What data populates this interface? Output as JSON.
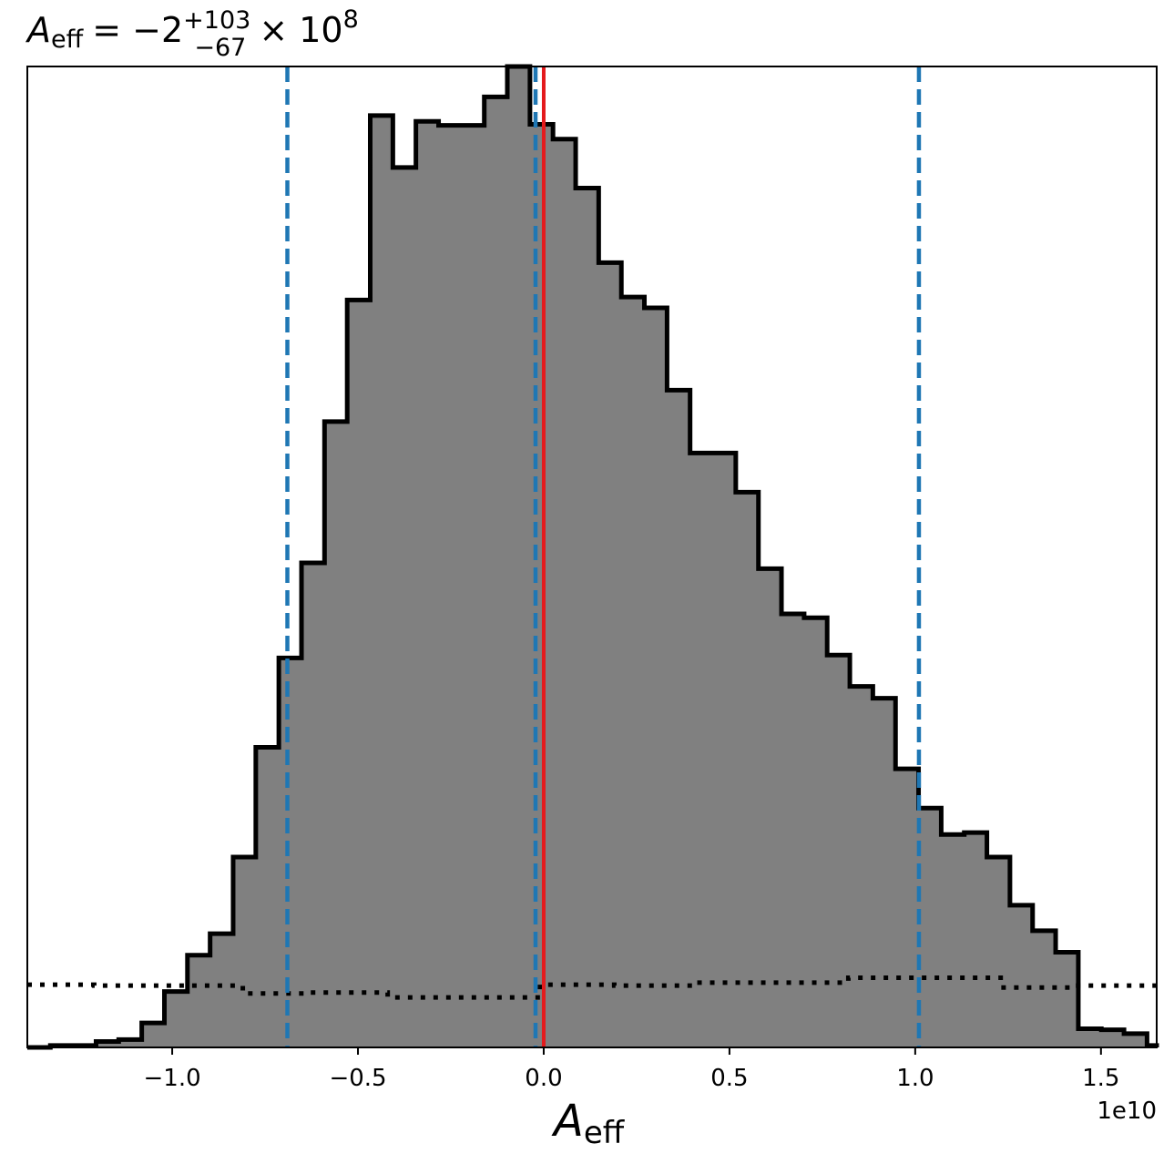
{
  "chart_data": {
    "type": "histogram",
    "title": {
      "symbol": "A",
      "subscript": "eff",
      "relation": "= −2",
      "upper": "+103",
      "lower": "−67",
      "multiplier": "× 10",
      "exponent": "8"
    },
    "xlabel": {
      "symbol": "A",
      "subscript": "eff"
    },
    "offset_label": "1e10",
    "x_unit_scale": 10000000000.0,
    "xlim": [
      -1.39,
      1.65
    ],
    "ylim": [
      0,
      1.0
    ],
    "xticks": [
      -1.0,
      -0.5,
      0.0,
      0.5,
      1.0,
      1.5
    ],
    "xtick_labels": [
      "−1.0",
      "−0.5",
      "0.0",
      "0.5",
      "1.0",
      "1.5"
    ],
    "yticks_shown": false,
    "grid": false,
    "histogram": {
      "bin_edges": [
        -1.39,
        -1.328,
        -1.267,
        -1.205,
        -1.144,
        -1.082,
        -1.021,
        -0.959,
        -0.898,
        -0.836,
        -0.775,
        -0.713,
        -0.652,
        -0.59,
        -0.529,
        -0.467,
        -0.406,
        -0.344,
        -0.283,
        -0.221,
        -0.16,
        -0.098,
        -0.037,
        0.025,
        0.086,
        0.148,
        0.209,
        0.271,
        0.332,
        0.394,
        0.455,
        0.517,
        0.578,
        0.64,
        0.701,
        0.763,
        0.824,
        0.886,
        0.947,
        1.009,
        1.07,
        1.132,
        1.193,
        1.255,
        1.316,
        1.378,
        1.439,
        1.501,
        1.562,
        1.624,
        1.65
      ],
      "heights": [
        0.0,
        0.002,
        0.002,
        0.006,
        0.008,
        0.025,
        0.057,
        0.094,
        0.116,
        0.194,
        0.306,
        0.397,
        0.494,
        0.638,
        0.762,
        0.95,
        0.897,
        0.944,
        0.94,
        0.94,
        0.969,
        1.0,
        0.941,
        0.926,
        0.876,
        0.8,
        0.765,
        0.754,
        0.67,
        0.606,
        0.606,
        0.566,
        0.488,
        0.442,
        0.438,
        0.4,
        0.368,
        0.356,
        0.284,
        0.244,
        0.217,
        0.219,
        0.194,
        0.145,
        0.119,
        0.097,
        0.019,
        0.018,
        0.014,
        0.002
      ],
      "fill_color": "#808080",
      "edge_color": "#000000"
    },
    "prior": {
      "style": "dotted",
      "color": "#000000",
      "bin_edges": [
        -1.39,
        -1.21,
        -1.0,
        -0.81,
        -0.63,
        -0.42,
        -0.22,
        -0.01,
        0.19,
        0.41,
        0.62,
        0.82,
        1.03,
        1.23,
        1.42,
        1.65
      ],
      "heights": [
        0.064,
        0.063,
        0.063,
        0.055,
        0.056,
        0.051,
        0.051,
        0.064,
        0.063,
        0.066,
        0.066,
        0.071,
        0.071,
        0.061,
        0.063
      ]
    },
    "quantile_lines": {
      "color": "#1f77b4",
      "style": "dashed",
      "x": [
        -0.69,
        -0.022,
        1.01
      ]
    },
    "truth_line": {
      "color": "#e41a1c",
      "style": "solid",
      "x": 0.0
    }
  }
}
